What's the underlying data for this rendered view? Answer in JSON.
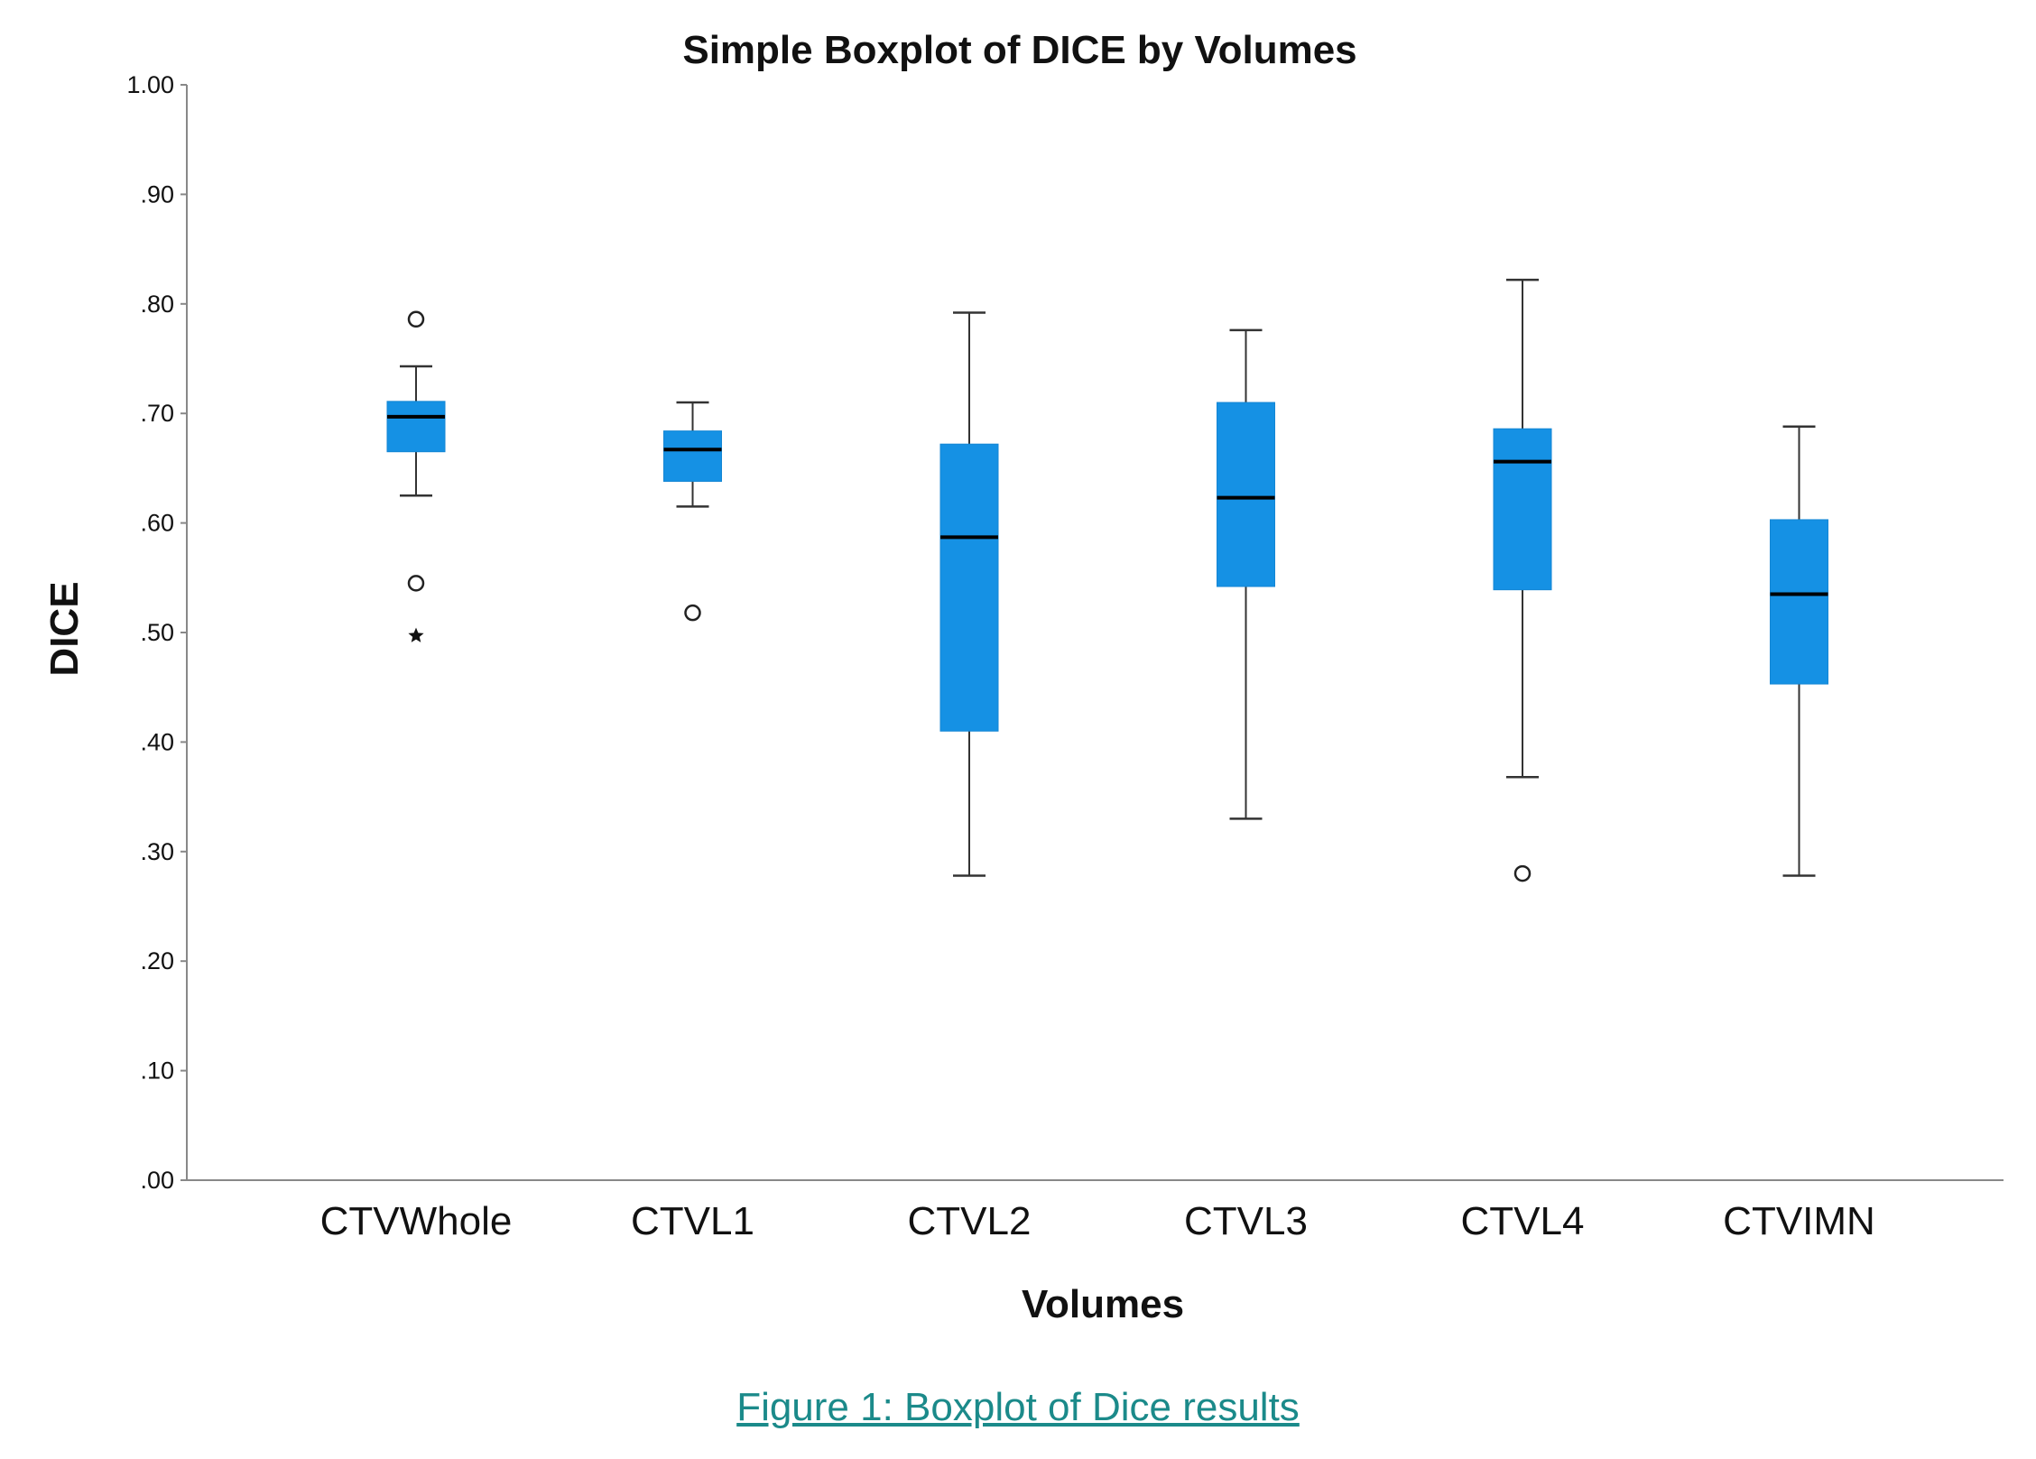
{
  "chart_data": {
    "type": "boxplot",
    "title": "Simple Boxplot of DICE by Volumes",
    "xlabel": "Volumes",
    "ylabel": "DICE",
    "ylim": [
      0,
      1
    ],
    "y_ticks": [
      {
        "value": 0.0,
        "label": ".00"
      },
      {
        "value": 0.1,
        "label": ".10"
      },
      {
        "value": 0.2,
        "label": ".20"
      },
      {
        "value": 0.3,
        "label": ".30"
      },
      {
        "value": 0.4,
        "label": ".40"
      },
      {
        "value": 0.5,
        "label": ".50"
      },
      {
        "value": 0.6,
        "label": ".60"
      },
      {
        "value": 0.7,
        "label": ".70"
      },
      {
        "value": 0.8,
        "label": ".80"
      },
      {
        "value": 0.9,
        "label": ".90"
      },
      {
        "value": 1.0,
        "label": "1.00"
      }
    ],
    "grid": false,
    "box_color": "#1591e4",
    "categories": [
      "CTVWhole",
      "CTVL1",
      "CTVL2",
      "CTVL3",
      "CTVL4",
      "CTVIMN"
    ],
    "boxes": [
      {
        "name": "CTVWhole",
        "whisker_low": 0.625,
        "q1": 0.665,
        "median": 0.697,
        "q3": 0.711,
        "whisker_high": 0.743,
        "outliers": [
          0.786,
          0.545
        ],
        "extremes": [
          0.497
        ]
      },
      {
        "name": "CTVL1",
        "whisker_low": 0.615,
        "q1": 0.638,
        "median": 0.667,
        "q3": 0.684,
        "whisker_high": 0.71,
        "outliers": [
          0.518
        ],
        "extremes": []
      },
      {
        "name": "CTVL2",
        "whisker_low": 0.278,
        "q1": 0.41,
        "median": 0.587,
        "q3": 0.672,
        "whisker_high": 0.792,
        "outliers": [],
        "extremes": []
      },
      {
        "name": "CTVL3",
        "whisker_low": 0.33,
        "q1": 0.542,
        "median": 0.623,
        "q3": 0.71,
        "whisker_high": 0.776,
        "outliers": [],
        "extremes": []
      },
      {
        "name": "CTVL4",
        "whisker_low": 0.368,
        "q1": 0.539,
        "median": 0.656,
        "q3": 0.686,
        "whisker_high": 0.822,
        "outliers": [
          0.28
        ],
        "extremes": []
      },
      {
        "name": "CTVIMN",
        "whisker_low": 0.278,
        "q1": 0.453,
        "median": 0.535,
        "q3": 0.603,
        "whisker_high": 0.688,
        "outliers": [],
        "extremes": []
      }
    ]
  },
  "caption": "Figure 1: Boxplot of Dice results"
}
